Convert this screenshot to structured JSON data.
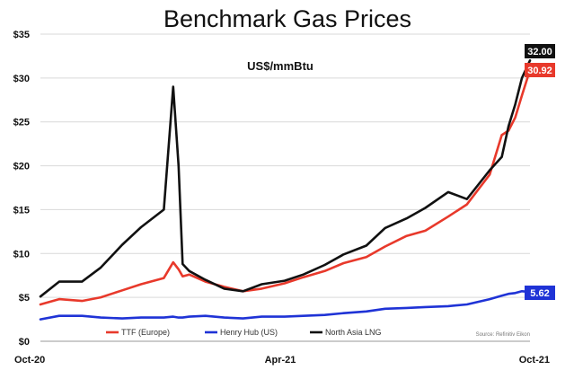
{
  "chart_data": {
    "type": "line",
    "title": "Benchmark Gas Prices",
    "subtitle": "US$/mmBtu",
    "xlabel": "",
    "ylabel": "",
    "x_tick_labels": [
      "Oct-20",
      "Apr-21",
      "Oct-21"
    ],
    "y_tick_labels": [
      "$0",
      "$5",
      "$10",
      "$15",
      "$20",
      "$25",
      "$30",
      "$35"
    ],
    "ylim": [
      0,
      35
    ],
    "x": [
      "2020-10-01",
      "2020-10-15",
      "2020-11-01",
      "2020-11-15",
      "2020-12-01",
      "2020-12-15",
      "2021-01-01",
      "2021-01-08",
      "2021-01-12",
      "2021-01-15",
      "2021-01-20",
      "2021-02-01",
      "2021-02-15",
      "2021-03-01",
      "2021-03-15",
      "2021-04-01",
      "2021-04-15",
      "2021-05-01",
      "2021-05-15",
      "2021-06-01",
      "2021-06-15",
      "2021-07-01",
      "2021-07-15",
      "2021-08-01",
      "2021-08-15",
      "2021-09-01",
      "2021-09-10",
      "2021-09-15",
      "2021-09-20",
      "2021-09-25",
      "2021-10-01"
    ],
    "grid": true,
    "legend_position": "bottom",
    "source_note": "Source: Refinitiv Eikon",
    "series": [
      {
        "name": "TTF (Europe)",
        "color": "#e8392b",
        "end_label": "30.92",
        "values": [
          4.2,
          4.8,
          4.6,
          5.0,
          5.8,
          6.5,
          7.2,
          9.0,
          8.2,
          7.4,
          7.6,
          6.8,
          6.2,
          5.7,
          6.0,
          6.6,
          7.3,
          8.0,
          8.9,
          9.6,
          10.8,
          12.0,
          12.6,
          14.2,
          15.6,
          19.0,
          23.5,
          24.0,
          25.5,
          28.0,
          30.92
        ]
      },
      {
        "name": "Henry Hub (US)",
        "color": "#1f33d6",
        "end_label": "5.62",
        "values": [
          2.5,
          2.9,
          2.9,
          2.7,
          2.6,
          2.7,
          2.7,
          2.8,
          2.7,
          2.7,
          2.8,
          2.9,
          2.7,
          2.6,
          2.8,
          2.8,
          2.9,
          3.0,
          3.2,
          3.4,
          3.7,
          3.8,
          3.9,
          4.0,
          4.2,
          4.8,
          5.2,
          5.4,
          5.5,
          5.7,
          5.62
        ]
      },
      {
        "name": "North Asia LNG",
        "color": "#111111",
        "end_label": "32.00",
        "values": [
          5.1,
          6.8,
          6.8,
          8.4,
          11.0,
          13.0,
          15.0,
          29.0,
          20.0,
          8.8,
          8.0,
          7.0,
          6.0,
          5.7,
          6.5,
          6.9,
          7.6,
          8.7,
          9.9,
          10.9,
          12.9,
          14.0,
          15.2,
          17.0,
          16.2,
          19.5,
          21.0,
          24.5,
          27.0,
          30.0,
          32.0
        ]
      }
    ]
  }
}
